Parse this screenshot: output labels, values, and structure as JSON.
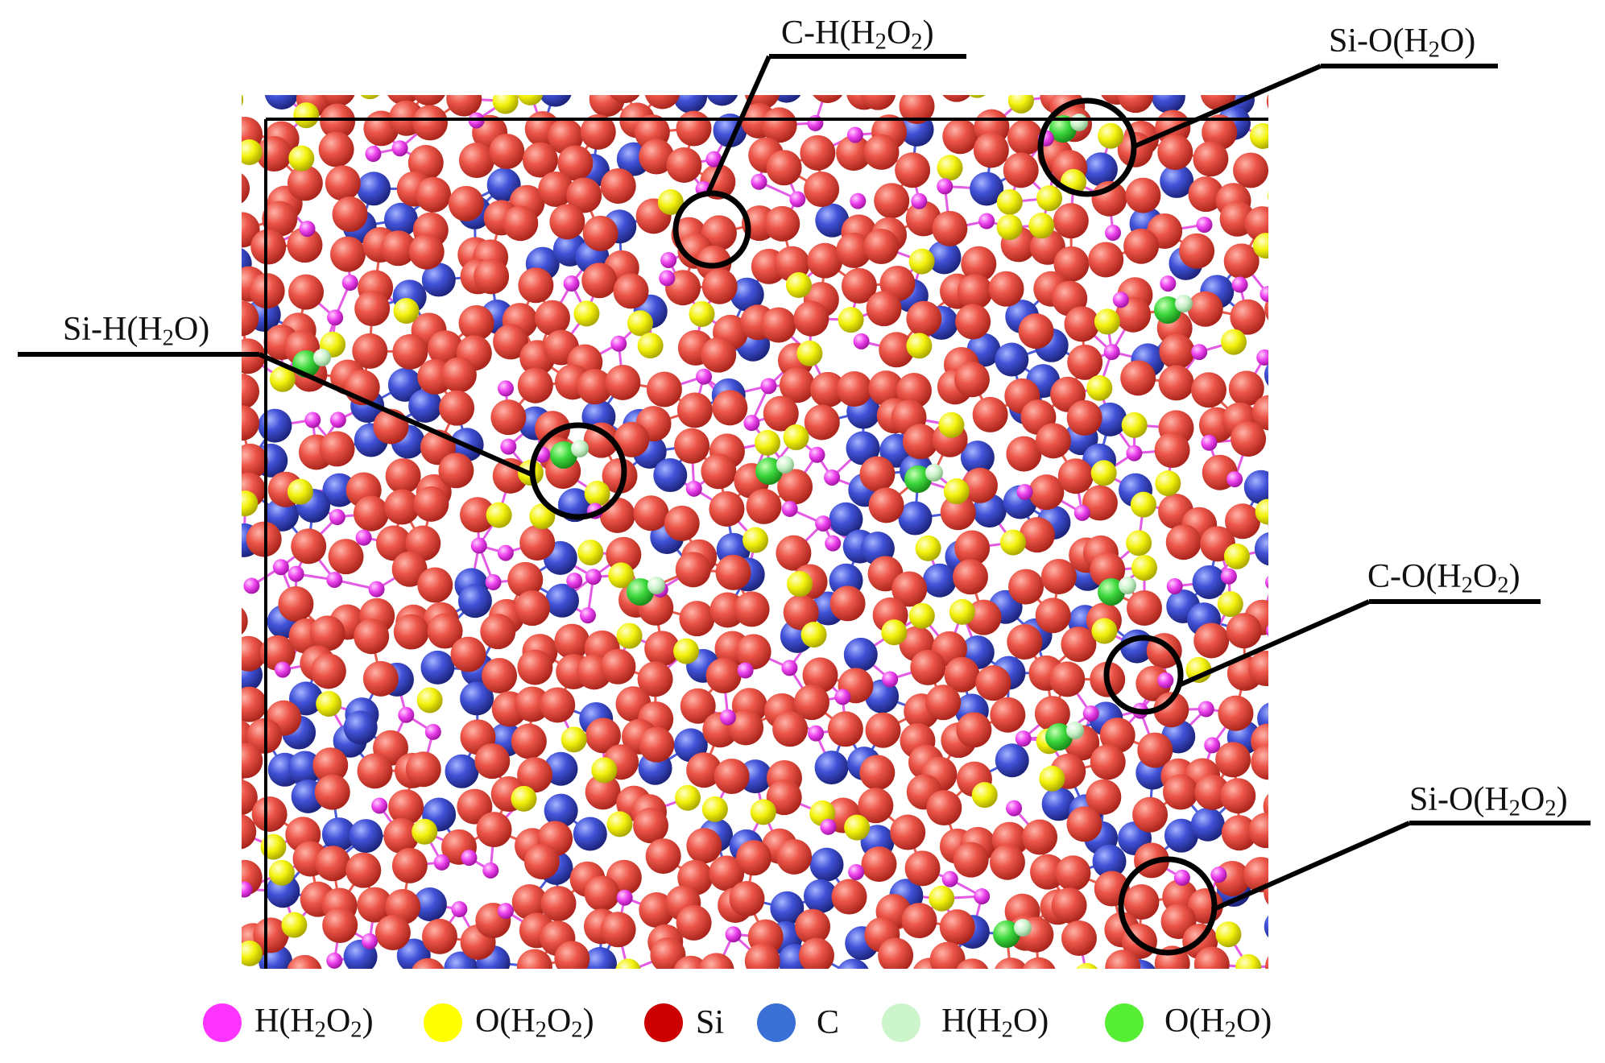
{
  "annotations": [
    {
      "id": "si-h-h2o",
      "label": "Si-H(H2O)"
    },
    {
      "id": "c-h-h2o2",
      "label": "C-H(H2O2)"
    },
    {
      "id": "si-o-h2o",
      "label": "Si-O(H2O)"
    },
    {
      "id": "c-o-h2o2",
      "label": "C-O(H2O2)"
    },
    {
      "id": "si-o-h2o2",
      "label": "Si-O(H2O2)"
    }
  ],
  "legend": [
    {
      "id": "h-h2o2",
      "label": "H(H2O2)",
      "color": "#ff33ff"
    },
    {
      "id": "o-h2o2",
      "label": "O(H2O2)",
      "color": "#ffff00"
    },
    {
      "id": "si",
      "label": "Si",
      "color": "#cc0000"
    },
    {
      "id": "c",
      "label": "C",
      "color": "#3a6fd6"
    },
    {
      "id": "h-h2o",
      "label": "H(H2O)",
      "color": "#ccf5cc"
    },
    {
      "id": "o-h2o",
      "label": "O(H2O)",
      "color": "#55ee33"
    }
  ],
  "colors": {
    "si_atom": "#e8473e",
    "c_atom": "#3f4fd0",
    "h_h2o2_atom": "#ee44ee",
    "o_h2o2_atom": "#f2f20a",
    "h_h2o_atom": "#c8f2c8",
    "o_h2o_atom": "#3cd83c",
    "si_bond": "#e65a4e",
    "frame": "#000000"
  }
}
